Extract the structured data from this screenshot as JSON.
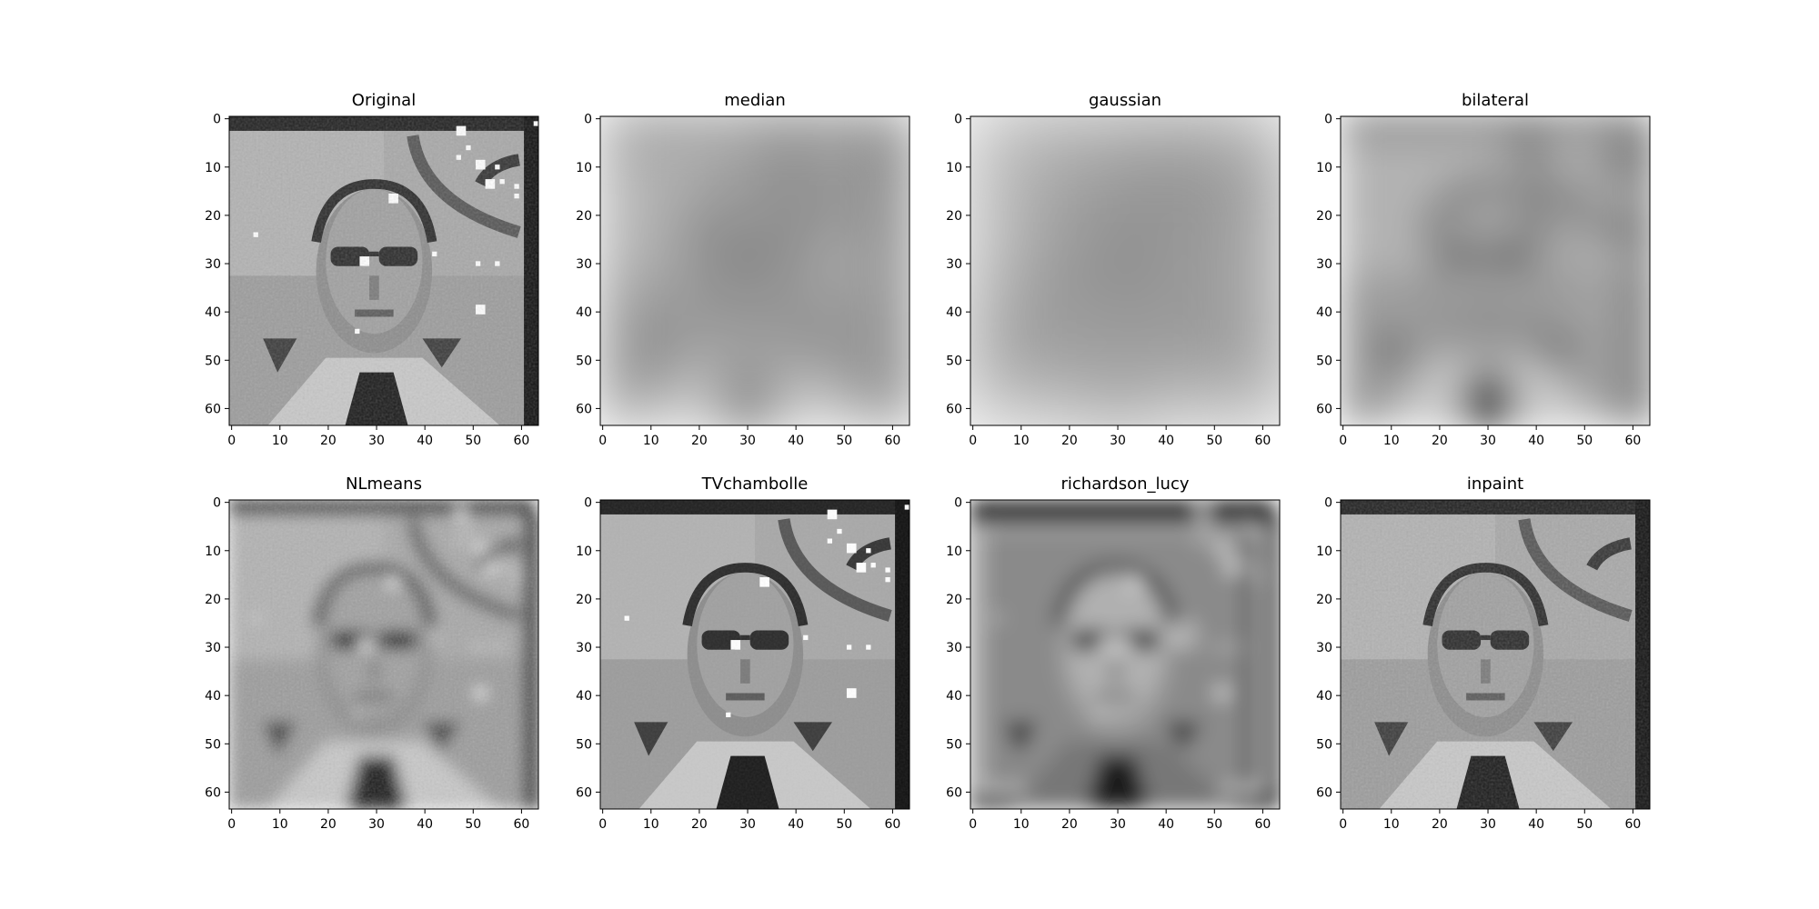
{
  "figure": {
    "panels": [
      {
        "title": "Original",
        "style": "original"
      },
      {
        "title": "median",
        "style": "median"
      },
      {
        "title": "gaussian",
        "style": "gaussian"
      },
      {
        "title": "bilateral",
        "style": "bilateral"
      },
      {
        "title": "NLmeans",
        "style": "nlmeans"
      },
      {
        "title": "TVchambolle",
        "style": "tv"
      },
      {
        "title": "richardson_lucy",
        "style": "rl"
      },
      {
        "title": "inpaint",
        "style": "inpaint"
      }
    ],
    "xticks": [
      "0",
      "10",
      "20",
      "30",
      "40",
      "50",
      "60"
    ],
    "yticks": [
      "0",
      "10",
      "20",
      "30",
      "40",
      "50",
      "60"
    ],
    "image_size": 64,
    "colors": {
      "frame": "#000000",
      "background": "#ffffff"
    }
  }
}
